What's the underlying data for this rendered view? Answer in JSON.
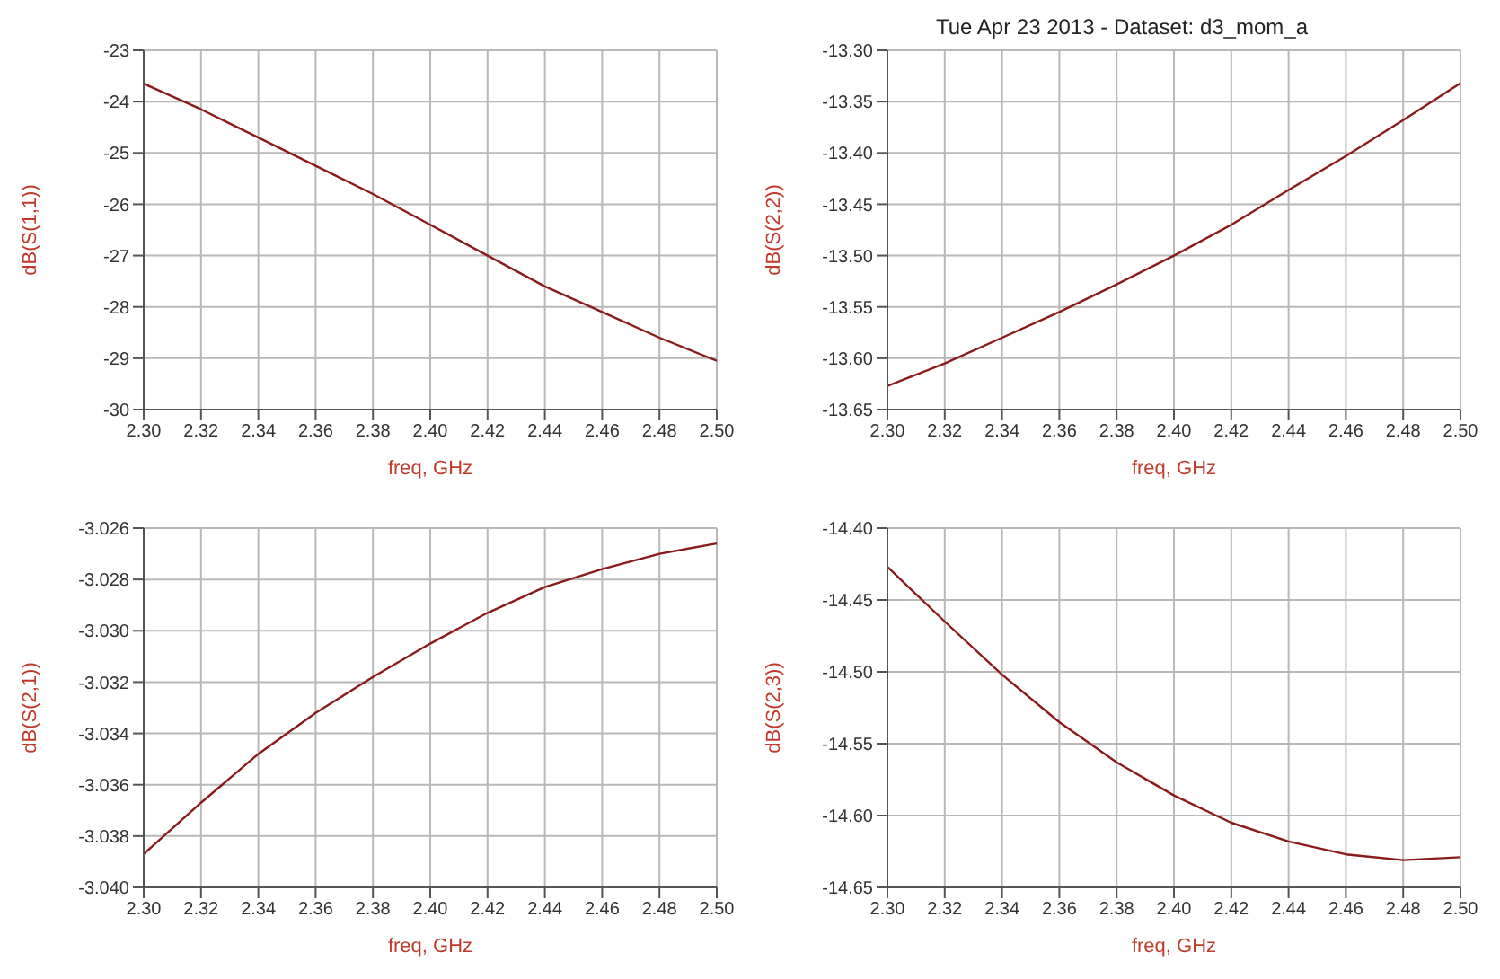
{
  "chart_data": [
    {
      "type": "line",
      "xlabel": "freq, GHz",
      "ylabel": "dB(S(1,1))",
      "x": [
        2.3,
        2.32,
        2.34,
        2.36,
        2.38,
        2.4,
        2.42,
        2.44,
        2.46,
        2.48,
        2.5
      ],
      "series": [
        {
          "color": "#8b1a1a",
          "values": [
            -23.65,
            -24.15,
            -24.7,
            -25.25,
            -25.8,
            -26.4,
            -27.0,
            -27.6,
            -28.1,
            -28.6,
            -29.05
          ]
        }
      ],
      "xlim": [
        2.3,
        2.5
      ],
      "xticks": [
        {
          "value": 2.3,
          "label": "2.30"
        },
        2.32,
        2.34,
        2.36,
        2.38,
        {
          "value": 2.4,
          "label": "2.40"
        },
        2.42,
        2.44,
        2.46,
        2.48,
        {
          "value": 2.5,
          "label": "2.50"
        }
      ],
      "ylim": [
        -30,
        -23
      ],
      "yticks": [
        -30,
        -29,
        -28,
        -27,
        -26,
        -25,
        -24,
        -23
      ],
      "grid": true,
      "line_style": "solid",
      "marker": "none"
    },
    {
      "type": "line",
      "title": "Tue Apr 23 2013 - Dataset: d3_mom_a",
      "xlabel": "freq, GHz",
      "ylabel": "dB(S(2,2))",
      "x": [
        2.3,
        2.32,
        2.34,
        2.36,
        2.38,
        2.4,
        2.42,
        2.44,
        2.46,
        2.48,
        2.5
      ],
      "series": [
        {
          "color": "#8b1a1a",
          "values": [
            -13.627,
            -13.605,
            -13.58,
            -13.555,
            -13.528,
            -13.5,
            -13.47,
            -13.436,
            -13.403,
            -13.368,
            -13.332
          ]
        }
      ],
      "xlim": [
        2.3,
        2.5
      ],
      "xticks": [
        {
          "value": 2.3,
          "label": "2.30"
        },
        2.32,
        2.34,
        2.36,
        2.38,
        {
          "value": 2.4,
          "label": "2.40"
        },
        2.42,
        2.44,
        2.46,
        2.48,
        {
          "value": 2.5,
          "label": "2.50"
        }
      ],
      "ylim": [
        -13.65,
        -13.3
      ],
      "yticks": [
        -13.65,
        {
          "value": -13.6,
          "label": "-13.60"
        },
        -13.55,
        {
          "value": -13.5,
          "label": "-13.50"
        },
        -13.45,
        {
          "value": -13.4,
          "label": "-13.40"
        },
        -13.35,
        {
          "value": -13.3,
          "label": "-13.30"
        }
      ],
      "grid": true,
      "line_style": "solid",
      "marker": "none"
    },
    {
      "type": "line",
      "xlabel": "freq, GHz",
      "ylabel": "dB(S(2,1))",
      "x": [
        2.3,
        2.32,
        2.34,
        2.36,
        2.38,
        2.4,
        2.42,
        2.44,
        2.46,
        2.48,
        2.5
      ],
      "series": [
        {
          "color": "#8b1a1a",
          "values": [
            -3.0387,
            -3.0367,
            -3.0348,
            -3.0332,
            -3.0318,
            -3.0305,
            -3.0293,
            -3.0283,
            -3.0276,
            -3.027,
            -3.0266
          ]
        }
      ],
      "xlim": [
        2.3,
        2.5
      ],
      "xticks": [
        {
          "value": 2.3,
          "label": "2.30"
        },
        2.32,
        2.34,
        2.36,
        2.38,
        {
          "value": 2.4,
          "label": "2.40"
        },
        2.42,
        2.44,
        2.46,
        2.48,
        {
          "value": 2.5,
          "label": "2.50"
        }
      ],
      "ylim": [
        -3.04,
        -3.026
      ],
      "yticks": [
        {
          "value": -3.04,
          "label": "-3.040"
        },
        -3.038,
        -3.036,
        -3.034,
        -3.032,
        {
          "value": -3.03,
          "label": "-3.030"
        },
        -3.028,
        -3.026
      ],
      "grid": true,
      "line_style": "solid",
      "marker": "none"
    },
    {
      "type": "line",
      "xlabel": "freq, GHz",
      "ylabel": "dB(S(2,3))",
      "x": [
        2.3,
        2.32,
        2.34,
        2.36,
        2.38,
        2.4,
        2.42,
        2.44,
        2.46,
        2.48,
        2.5
      ],
      "series": [
        {
          "color": "#8b1a1a",
          "values": [
            -14.427,
            -14.465,
            -14.502,
            -14.535,
            -14.563,
            -14.586,
            -14.605,
            -14.618,
            -14.627,
            -14.631,
            -14.629
          ]
        }
      ],
      "xlim": [
        2.3,
        2.5
      ],
      "xticks": [
        {
          "value": 2.3,
          "label": "2.30"
        },
        2.32,
        2.34,
        2.36,
        2.38,
        {
          "value": 2.4,
          "label": "2.40"
        },
        2.42,
        2.44,
        2.46,
        2.48,
        {
          "value": 2.5,
          "label": "2.50"
        }
      ],
      "ylim": [
        -14.65,
        -14.4
      ],
      "yticks": [
        -14.65,
        {
          "value": -14.6,
          "label": "-14.60"
        },
        -14.55,
        {
          "value": -14.5,
          "label": "-14.50"
        },
        -14.45,
        {
          "value": -14.4,
          "label": "-14.40"
        }
      ],
      "grid": true,
      "line_style": "solid",
      "marker": "none"
    }
  ]
}
